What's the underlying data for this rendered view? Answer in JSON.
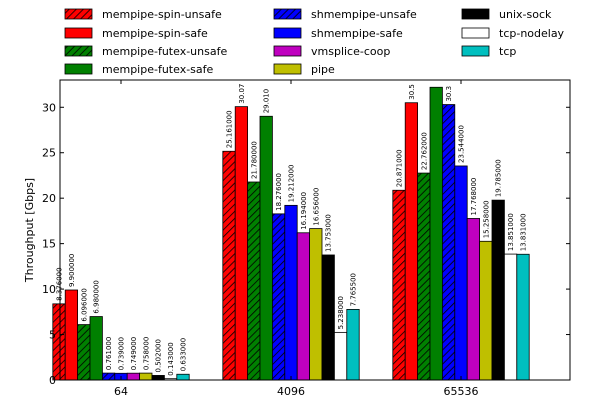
{
  "chart_data": {
    "type": "bar",
    "categories": [
      "64",
      "4096",
      "65536"
    ],
    "ylabel": "Throughput [Gbps]",
    "xlabel": "",
    "ylim": [
      0,
      33
    ],
    "yticks": [
      0,
      5,
      10,
      15,
      20,
      25,
      30
    ],
    "grid": false,
    "legend_position": "top",
    "series": [
      {
        "name": "mempipe-spin-unsafe",
        "color": "#ff0000",
        "hatch": true,
        "values": [
          8.376,
          25.161,
          20.871
        ],
        "labels": [
          "8.376000",
          "25.161000",
          "20.871000"
        ]
      },
      {
        "name": "mempipe-spin-safe",
        "color": "#ff0000",
        "hatch": false,
        "values": [
          9.9,
          30.07,
          30.5
        ],
        "labels": [
          "9.900000",
          "30.07",
          "30.5"
        ]
      },
      {
        "name": "mempipe-futex-unsafe",
        "color": "#008000",
        "hatch": true,
        "values": [
          6.096,
          21.78,
          22.762
        ],
        "labels": [
          "6.096000",
          "21.780000",
          "22.762000"
        ]
      },
      {
        "name": "mempipe-futex-safe",
        "color": "#008000",
        "hatch": false,
        "values": [
          6.98,
          29.01,
          32.2
        ],
        "labels": [
          "6.980000",
          "29.010",
          ""
        ]
      },
      {
        "name": "shmempipe-unsafe",
        "color": "#0000ff",
        "hatch": true,
        "values": [
          0.761,
          18.276,
          30.3
        ],
        "labels": [
          "0.761000",
          "18.276000",
          "30.3"
        ]
      },
      {
        "name": "shmempipe-safe",
        "color": "#0000ff",
        "hatch": false,
        "values": [
          0.739,
          19.212,
          23.544
        ],
        "labels": [
          "0.739000",
          "19.212000",
          "23.544000"
        ]
      },
      {
        "name": "vmsplice-coop",
        "color": "#bf00bf",
        "hatch": false,
        "values": [
          0.749,
          16.194,
          17.768
        ],
        "labels": [
          "0.749000",
          "16.194000",
          "17.768000"
        ]
      },
      {
        "name": "pipe",
        "color": "#bfbf00",
        "hatch": false,
        "values": [
          0.758,
          16.656,
          15.258
        ],
        "labels": [
          "0.758000",
          "16.656000",
          "15.258000"
        ]
      },
      {
        "name": "unix-sock",
        "color": "#000000",
        "hatch": false,
        "values": [
          0.502,
          13.753,
          19.785
        ],
        "labels": [
          "0.502000",
          "13.753000",
          "19.785000"
        ]
      },
      {
        "name": "tcp-nodelay",
        "color": "#ffffff",
        "hatch": false,
        "values": [
          0.143,
          5.238,
          13.851
        ],
        "labels": [
          "0.143000",
          "5.238000",
          "13.851000"
        ]
      },
      {
        "name": "tcp",
        "color": "#00bfbf",
        "hatch": false,
        "values": [
          0.633,
          7.7655,
          13.831
        ],
        "labels": [
          "0.633000",
          "7.765500",
          "13.831000"
        ]
      }
    ]
  }
}
